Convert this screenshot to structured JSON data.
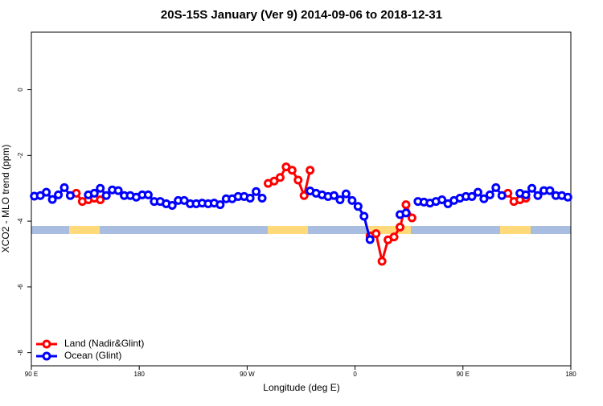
{
  "chart_data": {
    "type": "line",
    "title": "20S-15S January (Ver 9)   2014-09-06 to 2018-12-31",
    "x_label": "Longitude (deg E)",
    "y_label": "XCO2 - MLO trend (ppm)",
    "x": [
      92.5,
      97.5,
      102.5,
      107.5,
      112.5,
      117.5,
      122.5,
      127.5,
      132.5,
      137.5,
      142.5,
      147.5,
      152.5,
      157.5,
      162.5,
      167.5,
      172.5,
      177.5,
      182.5,
      187.5,
      192.5,
      197.5,
      202.5,
      207.5,
      212.5,
      217.5,
      222.5,
      227.5,
      232.5,
      237.5,
      242.5,
      247.5,
      252.5,
      257.5,
      262.5,
      267.5,
      272.5,
      277.5,
      282.5,
      287.5,
      292.5,
      297.5,
      302.5,
      307.5,
      312.5,
      317.5,
      322.5,
      327.5,
      332.5,
      337.5,
      342.5,
      347.5,
      352.5,
      357.5,
      362.5,
      367.5,
      372.5,
      377.5,
      382.5,
      387.5,
      392.5,
      397.5,
      402.5,
      407.5,
      412.5,
      417.5,
      422.5,
      427.5,
      432.5,
      437.5,
      442.5,
      447.5,
      452.5,
      457.5,
      462.5,
      467.5,
      472.5,
      477.5,
      482.5,
      487.5,
      492.5,
      497.5,
      502.5,
      507.5,
      512.5,
      517.5,
      522.5,
      527.5,
      532.5,
      537.5
    ],
    "series": [
      {
        "name": "Land (Nadir&Glint)",
        "color": "#ff0000",
        "values": [
          null,
          null,
          null,
          null,
          null,
          null,
          null,
          -3.15,
          -3.4,
          -3.35,
          -3.3,
          -3.35,
          null,
          null,
          null,
          null,
          null,
          null,
          null,
          null,
          null,
          null,
          null,
          null,
          null,
          null,
          null,
          null,
          null,
          null,
          null,
          null,
          null,
          null,
          null,
          null,
          null,
          null,
          null,
          -2.85,
          -2.78,
          -2.67,
          -2.35,
          -2.45,
          -2.75,
          -3.22,
          -2.45,
          null,
          null,
          null,
          null,
          null,
          null,
          null,
          null,
          null,
          -4.45,
          -4.38,
          -5.22,
          -4.57,
          -4.48,
          -4.18,
          -3.5,
          -3.9,
          null,
          null,
          null,
          null,
          null,
          null,
          null,
          null,
          null,
          null,
          null,
          null,
          null,
          null,
          null,
          -3.15,
          -3.4,
          -3.35,
          -3.3,
          null,
          null,
          null,
          null,
          null,
          null,
          null
        ]
      },
      {
        "name": "Ocean (Glint)",
        "color": "#0000ff",
        "values": [
          -3.24,
          -3.22,
          -3.12,
          -3.34,
          -3.2,
          -2.98,
          -3.22,
          null,
          null,
          -3.2,
          -3.15,
          -3.0,
          -3.22,
          -3.05,
          -3.07,
          -3.22,
          -3.22,
          -3.27,
          -3.2,
          -3.2,
          -3.4,
          -3.4,
          -3.47,
          -3.52,
          -3.37,
          -3.37,
          -3.47,
          -3.47,
          -3.45,
          -3.47,
          -3.45,
          -3.5,
          -3.32,
          -3.32,
          -3.25,
          -3.25,
          -3.3,
          -3.1,
          -3.3,
          null,
          null,
          null,
          null,
          null,
          null,
          null,
          -3.08,
          -3.15,
          -3.2,
          -3.25,
          -3.22,
          -3.35,
          -3.17,
          -3.37,
          -3.55,
          -3.85,
          -4.56,
          null,
          null,
          null,
          null,
          -3.8,
          -3.75,
          null,
          -3.4,
          -3.42,
          -3.45,
          -3.4,
          -3.35,
          -3.47,
          -3.37,
          -3.3,
          -3.25,
          -3.25,
          -3.12,
          -3.32,
          -3.2,
          -2.98,
          -3.22,
          null,
          null,
          -3.15,
          -3.2,
          -3.0,
          -3.22,
          -3.07,
          -3.07,
          -3.22,
          -3.22,
          -3.27
        ]
      }
    ],
    "xlim": [
      90,
      540
    ],
    "ylim": [
      -8.4,
      1.75
    ],
    "xticks": [
      {
        "value": 90,
        "label": "90 E"
      },
      {
        "value": 180,
        "label": "180"
      },
      {
        "value": 270,
        "label": "90 W"
      },
      {
        "value": 360,
        "label": "0"
      },
      {
        "value": 450,
        "label": "90 E"
      },
      {
        "value": 540,
        "label": "180"
      }
    ],
    "yticks": [
      -8,
      -6,
      -4,
      -2,
      0
    ],
    "legend": "bottom-left"
  }
}
